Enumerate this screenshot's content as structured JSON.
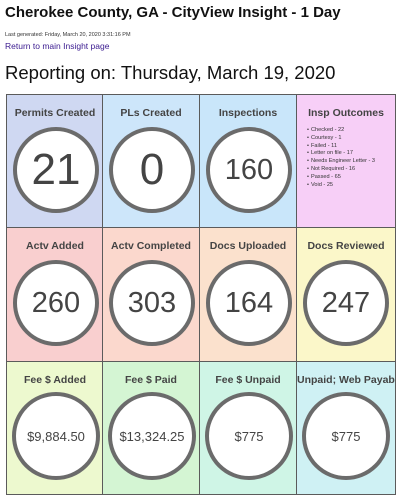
{
  "header": {
    "title": "Cherokee County, GA - CityView Insight - 1 Day",
    "generated": "Last generated: Friday, March 20, 2020 3:31:16 PM",
    "return_link": "Return to main Insight page",
    "reporting": "Reporting on: Thursday, March 19, 2020"
  },
  "tiles": [
    {
      "title": "Permits Created",
      "value": "21",
      "color": "#cfd8f2"
    },
    {
      "title": "PLs Created",
      "value": "0",
      "color": "#cde6fa"
    },
    {
      "title": "Inspections",
      "value": "160",
      "color": "#c9e6fa"
    },
    {
      "title": "Insp Outcomes",
      "color": "#f7cff7",
      "outcomes": [
        "Checked - 22",
        "Courtesy - 1",
        "Failed - 11",
        "Letter on file - 17",
        "Needs Engineer Letter - 3",
        "Not Required - 16",
        "Passed - 65",
        "Void - 25"
      ]
    },
    {
      "title": "Actv Added",
      "value": "260",
      "color": "#f9cfcf"
    },
    {
      "title": "Actv Completed",
      "value": "303",
      "color": "#fbd8cd"
    },
    {
      "title": "Docs Uploaded",
      "value": "164",
      "color": "#fbe1cd"
    },
    {
      "title": "Docs Reviewed",
      "value": "247",
      "color": "#fbf7c9"
    },
    {
      "title": "Fee $ Added",
      "value": "$9,884.50",
      "color": "#edf9cf"
    },
    {
      "title": "Fee $ Paid",
      "value": "$13,324.25",
      "color": "#d4f5d3"
    },
    {
      "title": "Fee $ Unpaid",
      "value": "$775",
      "color": "#cff5e6"
    },
    {
      "title": "Unpaid; Web Payable",
      "value": "$775",
      "color": "#cff1f4"
    }
  ]
}
